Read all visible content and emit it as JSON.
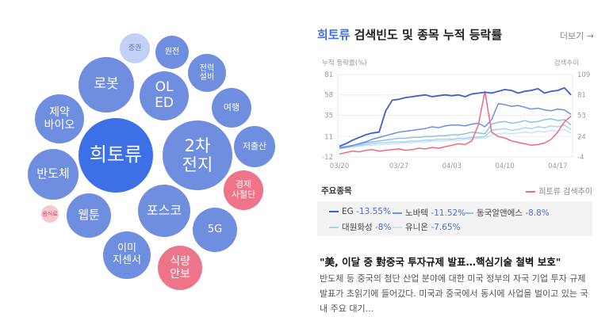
{
  "bubbles": [
    {
      "label": "희토류",
      "cls": "b-main"
    },
    {
      "label": "2차\n전지",
      "cls": "b-blue"
    },
    {
      "label": "OL\nED",
      "cls": "b-blue"
    },
    {
      "label": "로봇",
      "cls": "b-blue"
    },
    {
      "label": "제약\n바이오",
      "cls": "b-blue"
    },
    {
      "label": "반도체",
      "cls": "b-blue"
    },
    {
      "label": "웹툰",
      "cls": "b-blue"
    },
    {
      "label": "포스코",
      "cls": "b-blue"
    },
    {
      "label": "이미\n지센서",
      "cls": "b-blue"
    },
    {
      "label": "식량\n안보",
      "cls": "b-pink"
    },
    {
      "label": "5G",
      "cls": "b-blue"
    },
    {
      "label": "경제\n사절단",
      "cls": "b-pink"
    },
    {
      "label": "저출산",
      "cls": "b-blue"
    },
    {
      "label": "여행",
      "cls": "b-blue"
    },
    {
      "label": "전력\n설비",
      "cls": "b-blue"
    },
    {
      "label": "원전",
      "cls": "b-blue"
    },
    {
      "label": "증권",
      "cls": "b-light"
    },
    {
      "label": "음식료",
      "cls": "b-pinkl"
    }
  ],
  "panel": {
    "title_highlight": "희토류",
    "title_rest": " 검색빈도 및 종목 누적 등락률",
    "more_label": "더보기 →"
  },
  "chart_data": {
    "type": "line",
    "xlabel": "누적 등락률(%)",
    "ylabel_right": "검색추이",
    "x_ticks": [
      "03/20",
      "03/27",
      "04/03",
      "04/10",
      "04/17"
    ],
    "y_ticks_left": [
      81,
      58,
      35,
      11,
      -12
    ],
    "y_ticks_right": [
      109,
      81,
      53,
      24,
      -4
    ],
    "ylim": [
      -12,
      81
    ],
    "ylim_right": [
      -4,
      109
    ],
    "series": [
      {
        "name": "EG",
        "axis": "left",
        "color": "#3d5fd0",
        "values": [
          0,
          3,
          7,
          10,
          13,
          15,
          16,
          40,
          52,
          53,
          55,
          56,
          57,
          58,
          56,
          57,
          58,
          57,
          58,
          56,
          59,
          60,
          61,
          60,
          62,
          64,
          63,
          60,
          62,
          63,
          65,
          60,
          62,
          63,
          66,
          58
        ]
      },
      {
        "name": "노바텍",
        "axis": "left",
        "color": "#6f8ee0",
        "values": [
          -2,
          -1,
          1,
          3,
          5,
          8,
          10,
          12,
          14,
          16,
          17,
          18,
          19,
          20,
          22,
          21,
          23,
          24,
          24,
          23,
          25,
          26,
          22,
          30,
          48,
          47,
          45,
          46,
          44,
          42,
          43,
          41,
          40,
          42,
          41,
          36
        ]
      },
      {
        "name": "동국알앤에스",
        "axis": "left",
        "color": "#8ec3e6",
        "values": [
          -1,
          0,
          1,
          2,
          4,
          5,
          6,
          7,
          8,
          9,
          9,
          10,
          10,
          11,
          11,
          12,
          12,
          13,
          13,
          14,
          16,
          15,
          14,
          25,
          27,
          28,
          26,
          27,
          29,
          27,
          28,
          30,
          31,
          29,
          30,
          24
        ]
      },
      {
        "name": "대원화성",
        "axis": "left",
        "color": "#a8d4ef",
        "values": [
          -2,
          -1,
          0,
          1,
          2,
          3,
          4,
          4,
          5,
          5,
          5,
          6,
          6,
          7,
          7,
          8,
          8,
          8,
          9,
          9,
          10,
          10,
          11,
          18,
          19,
          20,
          18,
          19,
          21,
          20,
          22,
          21,
          23,
          22,
          24,
          19
        ]
      },
      {
        "name": "유니온",
        "axis": "left",
        "color": "#cfe3f6",
        "values": [
          -3,
          -2,
          -1,
          0,
          1,
          1,
          2,
          2,
          3,
          3,
          4,
          4,
          5,
          5,
          6,
          6,
          6,
          7,
          7,
          8,
          8,
          9,
          9,
          13,
          14,
          15,
          14,
          15,
          16,
          15,
          17,
          16,
          18,
          17,
          19,
          15
        ]
      },
      {
        "name": "희토류 검색추이",
        "axis": "right",
        "color": "#ee6a80",
        "values": [
          0,
          2,
          4,
          3,
          5,
          6,
          4,
          5,
          6,
          7,
          5,
          6,
          8,
          7,
          9,
          8,
          10,
          12,
          14,
          13,
          18,
          40,
          86,
          30,
          24,
          22,
          18,
          16,
          14,
          12,
          13,
          15,
          20,
          30,
          44,
          52
        ]
      }
    ]
  },
  "section": {
    "title": "주요종목",
    "legend_label": "희토류 검색추이"
  },
  "stocks": [
    {
      "name": "EG",
      "change": "-13.55%",
      "color": "#3d5fd0"
    },
    {
      "name": "노바텍",
      "change": "-11.52%",
      "color": "#6f8ee0"
    },
    {
      "name": "동국알앤에스",
      "change": "-8.8%",
      "color": "#8ec3e6"
    },
    {
      "name": "대원화성",
      "change": "-8%",
      "color": "#a8d4ef"
    },
    {
      "name": "유니온",
      "change": "-7.65%",
      "color": "#cfe3f6"
    }
  ],
  "news": {
    "title": "\"美, 이달 중 對중국 투자규제 발표…핵심기술 철벽 보호\"",
    "body": "반도체 등 중국의 첨단 산업 분야에 대한 미국 정부의 자국 기업 투자 규제 발표가 초읽기에 들어갔다. 미국과 중국에서 동시에 사업을 벌이고 있는 국내 주요 대기..."
  }
}
